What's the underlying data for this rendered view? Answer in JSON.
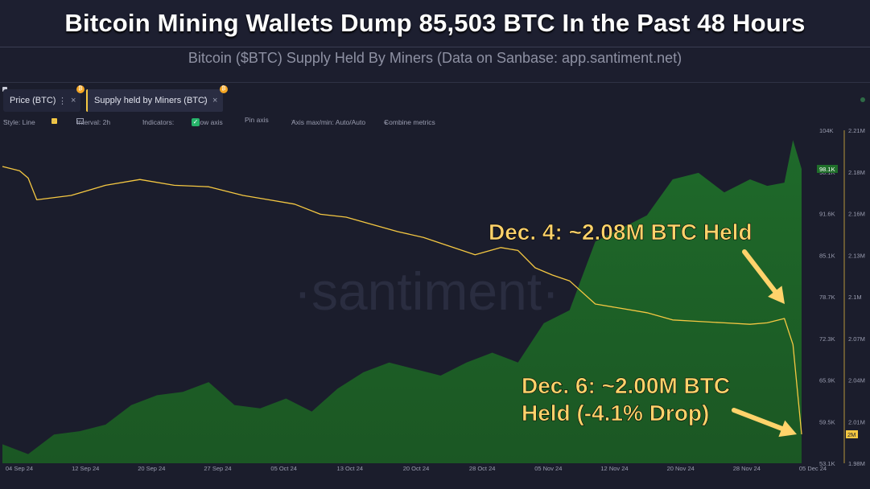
{
  "header": {
    "title": "Bitcoin Mining Wallets Dump 85,503 BTC In the Past 48 Hours",
    "subtitle": "Bitcoin ($BTC) Supply Held By Miners (Data on Sanbase: app.santiment.net)"
  },
  "tabs": [
    {
      "label": "Price (BTC)",
      "menu": "⋮",
      "close": "×",
      "badge": "₿"
    },
    {
      "label": "Supply held by Miners (BTC)",
      "menu": "⋮",
      "close": "×",
      "badge": "₿"
    }
  ],
  "toolbar": {
    "style": "Style: Line",
    "interval": "Interval: 2h",
    "indicators": "Indicators:",
    "show_axis": "Show axis",
    "pin_axis": "Pin axis",
    "axis_maxmin": "Axis max/min: Auto/Auto",
    "combine": "Combine metrics",
    "chevron": "⌵",
    "plus": "+",
    "check": "✓",
    "calendar_icon": "calendar-icon"
  },
  "colors": {
    "price_fill": "#1b5a23",
    "price_fill_top": "#1f6e2a",
    "supply_line": "#f5c842",
    "background": "#1c1e2e",
    "annotation": "#ffd36b"
  },
  "watermark": "·santiment·",
  "annotations": [
    {
      "lines": [
        "Dec. 4: ~2.08M BTC Held"
      ]
    },
    {
      "lines": [
        "Dec. 6: ~2.00M BTC",
        "Held (-4.1% Drop)"
      ]
    }
  ],
  "chart_data": {
    "type": "area",
    "x_ticks": [
      "04 Sep 24",
      "12 Sep 24",
      "20 Sep 24",
      "27 Sep 24",
      "05 Oct 24",
      "13 Oct 24",
      "20 Oct 24",
      "28 Oct 24",
      "05 Nov 24",
      "12 Nov 24",
      "20 Nov 24",
      "28 Nov 24",
      "05 Dec 24"
    ],
    "xlim": [
      "2024-09-04",
      "2024-12-06"
    ],
    "y_left": {
      "ticks": [
        "104K",
        "98.1K",
        "91.6K",
        "85.1K",
        "78.7K",
        "72.3K",
        "65.9K",
        "59.5K",
        "53.1K"
      ],
      "ylim": [
        53100,
        104000
      ],
      "current_label": "98.1K"
    },
    "y_right": {
      "ticks": [
        "2.21M",
        "2.18M",
        "2.16M",
        "2.13M",
        "2.1M",
        "2.07M",
        "2.04M",
        "2.01M",
        "1.98M"
      ],
      "ylim": [
        1980000,
        2210000
      ],
      "current_label": "2M"
    },
    "series": [
      {
        "name": "Price (BTC)",
        "axis": "left",
        "style": "area",
        "x": [
          "2024-09-04",
          "2024-09-07",
          "2024-09-10",
          "2024-09-13",
          "2024-09-16",
          "2024-09-19",
          "2024-09-22",
          "2024-09-25",
          "2024-09-28",
          "2024-10-01",
          "2024-10-04",
          "2024-10-07",
          "2024-10-10",
          "2024-10-13",
          "2024-10-16",
          "2024-10-19",
          "2024-10-22",
          "2024-10-25",
          "2024-10-28",
          "2024-10-31",
          "2024-11-03",
          "2024-11-06",
          "2024-11-09",
          "2024-11-12",
          "2024-11-15",
          "2024-11-18",
          "2024-11-21",
          "2024-11-24",
          "2024-11-27",
          "2024-11-30",
          "2024-12-02",
          "2024-12-04",
          "2024-12-05",
          "2024-12-06"
        ],
        "values": [
          56000,
          54500,
          57500,
          58000,
          59000,
          62000,
          63500,
          64000,
          65500,
          62000,
          61500,
          63000,
          61000,
          64500,
          67000,
          68500,
          67500,
          66500,
          68500,
          70000,
          68500,
          74500,
          76500,
          87000,
          89000,
          91000,
          96500,
          97500,
          94500,
          96500,
          95500,
          96000,
          102500,
          98100
        ]
      },
      {
        "name": "Supply held by Miners (BTC)",
        "axis": "right",
        "style": "line",
        "x": [
          "2024-09-04",
          "2024-09-06",
          "2024-09-07",
          "2024-09-08",
          "2024-09-12",
          "2024-09-16",
          "2024-09-20",
          "2024-09-24",
          "2024-09-28",
          "2024-10-02",
          "2024-10-05",
          "2024-10-08",
          "2024-10-11",
          "2024-10-14",
          "2024-10-17",
          "2024-10-20",
          "2024-10-23",
          "2024-10-26",
          "2024-10-29",
          "2024-11-01",
          "2024-11-03",
          "2024-11-05",
          "2024-11-07",
          "2024-11-09",
          "2024-11-12",
          "2024-11-15",
          "2024-11-18",
          "2024-11-21",
          "2024-11-24",
          "2024-11-27",
          "2024-11-30",
          "2024-12-02",
          "2024-12-04",
          "2024-12-05",
          "2024-12-06"
        ],
        "values": [
          2185000,
          2182000,
          2177000,
          2162000,
          2165000,
          2172000,
          2176000,
          2172000,
          2171000,
          2165000,
          2162000,
          2159000,
          2152000,
          2150000,
          2145000,
          2140000,
          2136000,
          2130000,
          2124000,
          2129000,
          2127000,
          2115000,
          2110000,
          2106000,
          2090000,
          2087000,
          2084000,
          2079000,
          2078000,
          2077000,
          2076000,
          2077000,
          2080000,
          2062000,
          2000000
        ]
      }
    ]
  }
}
